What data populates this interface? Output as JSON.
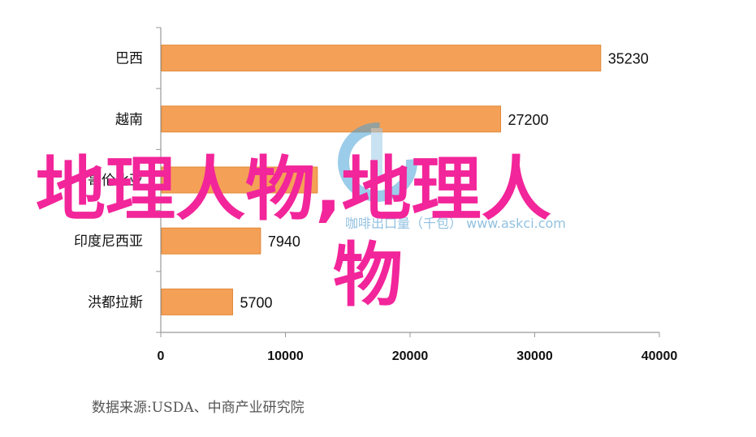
{
  "chart_data": {
    "type": "bar",
    "orientation": "horizontal",
    "categories": [
      "巴西",
      "越南",
      "哥伦比亚",
      "印度尼西亚",
      "洪都拉斯"
    ],
    "values": [
      35230,
      27200,
      12500,
      7940,
      5700
    ],
    "value_labels": [
      "35230",
      "27200",
      "",
      "7940",
      "5700"
    ],
    "xlim": [
      0,
      40000
    ],
    "xticks": [
      0,
      10000,
      20000,
      30000,
      40000
    ],
    "xtick_labels": [
      "0",
      "10000",
      "20000",
      "30000",
      "40000"
    ],
    "bar_color": "#f5a057",
    "bar_edge_color": "#e08a3a",
    "grid": false
  },
  "source_note": "数据来源:USDA、中商产业研究院",
  "watermark": {
    "overlay_line1": "地理人物,地理人",
    "overlay_line2": "物",
    "overlay_color": "#f2259a",
    "logo_text": "咖啡出口量（千包）",
    "logo_url_text": "www.askci.com"
  }
}
